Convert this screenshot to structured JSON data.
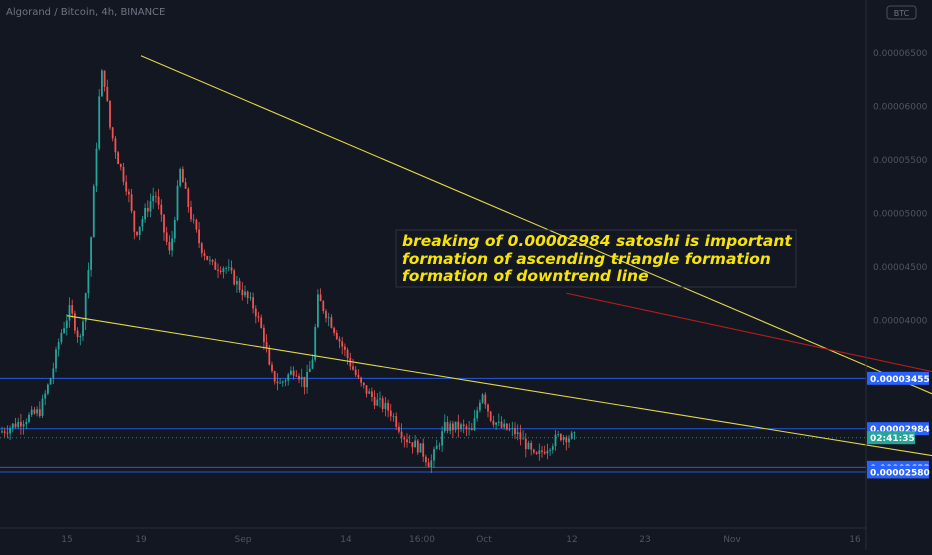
{
  "header": {
    "symbol_title": "Algorand / Bitcoin, 4h, BINANCE",
    "currency_badge": "BTC"
  },
  "annotation": {
    "lines": [
      "breaking of 0.00002984 satoshi is important",
      "formation of ascending triangle formation",
      "formation of downtrend line"
    ],
    "text_color": "#f5e30a"
  },
  "chart_data": {
    "type": "candlestick",
    "title": "Algorand / Bitcoin, 4h, BINANCE",
    "y_ticks": [
      "0.00006500",
      "0.00006000",
      "0.00005500",
      "0.00005000",
      "0.00004500",
      "0.00004000"
    ],
    "y_tick_values": [
      6.5e-05,
      6e-05,
      5.5e-05,
      5e-05,
      4.5e-05,
      4e-05
    ],
    "x_ticks": [
      "15",
      "19",
      "Sep",
      "14",
      "16:00",
      "Oct",
      "12",
      "23",
      "Nov",
      "16"
    ],
    "price_labels": [
      {
        "text": "0.00003455",
        "value": 3.455e-05,
        "kind": "level"
      },
      {
        "text": "0.00002984",
        "value": 2.984e-05,
        "kind": "level"
      },
      {
        "text": "02:41:35",
        "value": 2.9e-05,
        "kind": "countdown"
      },
      {
        "text": "0.00002623",
        "value": 2.623e-05,
        "kind": "level"
      },
      {
        "text": "0.00002580",
        "value": 2.58e-05,
        "kind": "level"
      }
    ],
    "horizontal_levels": [
      3.455e-05,
      2.984e-05,
      2.623e-05,
      2.58e-05
    ],
    "current_price": 2.9e-05,
    "trend_lines": [
      {
        "name": "downtrend-1",
        "color": "#e2d84a",
        "x": [
          "2020-08-19",
          "2020-10-12"
        ],
        "y": [
          6.47e-05,
          2.48e-05
        ]
      },
      {
        "name": "downtrend-2",
        "color": "#e2d84a",
        "x": [
          "2020-08-15",
          "2020-10-08"
        ],
        "y": [
          4.04e-05,
          2.53e-05
        ]
      },
      {
        "name": "resistance",
        "color": "#b71c1c",
        "x": [
          "2020-09-11",
          "2020-10-22"
        ],
        "y": [
          4.25e-05,
          2.73e-05
        ]
      },
      {
        "name": "triangle-support",
        "color": "#e2d84a",
        "x": [
          "2020-10-09",
          "2020-10-16"
        ],
        "y": [
          2.63e-05,
          3e-05
        ]
      },
      {
        "name": "triangle-top",
        "color": "#e2d84a",
        "x": [
          "2020-10-09",
          "2020-10-16"
        ],
        "y": [
          2.99e-05,
          2.99e-05
        ]
      }
    ],
    "projection_arrow": {
      "x": [
        "2020-10-13",
        "2020-10-16"
      ],
      "y": [
        2.99e-05,
        3.45e-05
      ]
    },
    "colors": {
      "up": "#26a69a",
      "down": "#ef5350",
      "level_line": "#2962ff",
      "label_bg": "#2962ff",
      "countdown_bg": "#26a69a"
    },
    "ylim": [
      2.25e-05,
      6.9e-05
    ],
    "grid": false
  }
}
